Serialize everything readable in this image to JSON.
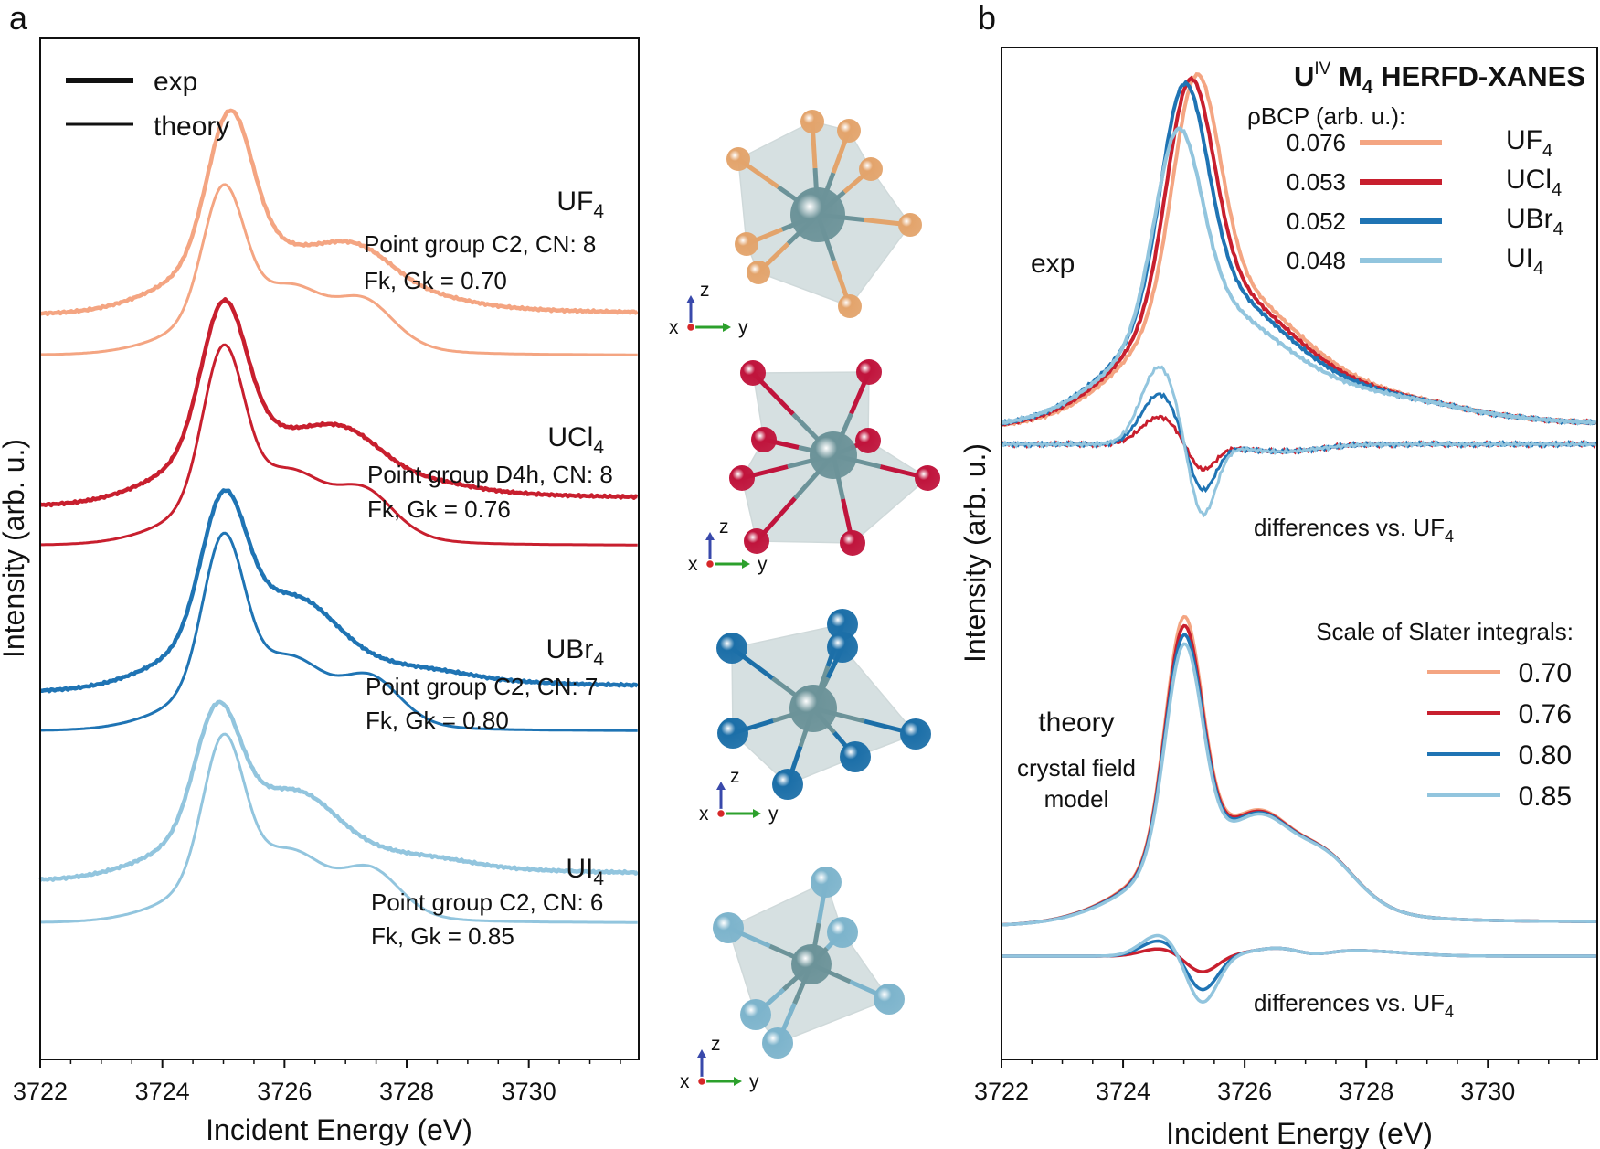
{
  "colors": {
    "UF4": "#f4a582",
    "UCl4": "#c81f2e",
    "UBr4": "#1f74b4",
    "UI4": "#92c5de",
    "axis": "#111111",
    "polyhedron": "#b4c6c8",
    "uranium": "#6c9399"
  },
  "panel_a": {
    "label": "a",
    "xlabel": "Incident Energy (eV)",
    "ylabel": "Intensity (arb. u.)",
    "legend": {
      "exp": "exp",
      "theory": "theory"
    },
    "compounds": [
      {
        "key": "UF4",
        "base": "UF",
        "sub": "4",
        "pg": "Point group C2, CN: 8",
        "fk": "Fk, Gk = 0.70"
      },
      {
        "key": "UCl4",
        "base": "UCl",
        "sub": "4",
        "pg": "Point group D4h, CN: 8",
        "fk": "Fk, Gk = 0.76"
      },
      {
        "key": "UBr4",
        "base": "UBr",
        "sub": "4",
        "pg": "Point group C2, CN: 7",
        "fk": "Fk, Gk = 0.80"
      },
      {
        "key": "UI4",
        "base": "UI",
        "sub": "4",
        "pg": "Point group C2, CN: 6",
        "fk": "Fk, Gk = 0.85"
      }
    ]
  },
  "structures": {
    "axes_labels": {
      "x": "x",
      "y": "y",
      "z": "z"
    },
    "icons": [
      "UF4-structure-icon",
      "UCl4-structure-icon",
      "UBr4-structure-icon",
      "UI4-structure-icon"
    ]
  },
  "panel_b": {
    "label": "b",
    "xlabel": "Incident Energy (eV)",
    "ylabel": "Intensity (arb. u.)",
    "title_main": "U",
    "title_sup": "IV",
    "title_m": " M",
    "title_sub": "4",
    "title_rest": " HERFD-XANES",
    "rho_header": "ρBCP (arb. u.):",
    "rho_values": [
      "0.076",
      "0.053",
      "0.052",
      "0.048"
    ],
    "legend_top": [
      {
        "key": "UF4",
        "base": "UF",
        "sub": "4"
      },
      {
        "key": "UCl4",
        "base": "UCl",
        "sub": "4"
      },
      {
        "key": "UBr4",
        "base": "UBr",
        "sub": "4"
      },
      {
        "key": "UI4",
        "base": "UI",
        "sub": "4"
      }
    ],
    "exp_label": "exp",
    "diff_label": "differences vs. UF",
    "diff_sub": "4",
    "theory_label": "theory",
    "crystal_label_1": "crystal field",
    "crystal_label_2": "model",
    "slater_header": "Scale of Slater integrals:",
    "slater_values": [
      "0.70",
      "0.76",
      "0.80",
      "0.85"
    ]
  },
  "chart_data": [
    {
      "type": "line",
      "panel": "a",
      "xlabel": "Incident Energy (eV)",
      "ylabel": "Intensity (arb. u.)",
      "xlim": [
        3722,
        3731.8
      ],
      "xticks": [
        3722,
        3724,
        3726,
        3728,
        3730
      ],
      "legend": [
        "exp",
        "theory"
      ],
      "series": [
        {
          "name": "UF4",
          "fk_gk": 0.7,
          "exp": {
            "peak_x": 3725.1,
            "baseline_pre": 0.0,
            "peak": 1.0,
            "shoulder_x": 3727.2,
            "post": 0.0
          },
          "theory": {
            "peak_x": 3725.0,
            "peak": 1.0,
            "shoulder_x": 3727.3
          }
        },
        {
          "name": "UCl4",
          "fk_gk": 0.76,
          "exp": {
            "peak_x": 3725.0,
            "peak": 1.0,
            "shoulder_x": 3727.0
          },
          "theory": {
            "peak_x": 3725.0,
            "peak": 1.0,
            "shoulder_x": 3727.3
          }
        },
        {
          "name": "UBr4",
          "fk_gk": 0.8,
          "exp": {
            "peak_x": 3725.0,
            "peak": 1.0,
            "shoulder_x": 3726.3
          },
          "theory": {
            "peak_x": 3725.0,
            "peak": 1.0,
            "shoulder_x": 3727.4
          }
        },
        {
          "name": "UI4",
          "fk_gk": 0.85,
          "exp": {
            "peak_x": 3724.9,
            "peak": 1.0,
            "shoulder_x": 3726.3
          },
          "theory": {
            "peak_x": 3725.0,
            "peak": 1.0,
            "shoulder_x": 3727.4
          }
        }
      ]
    },
    {
      "type": "line",
      "panel": "b",
      "title": "UIV M4 HERFD-XANES",
      "xlabel": "Incident Energy (eV)",
      "ylabel": "Intensity (arb. u.)",
      "xlim": [
        3722,
        3731.8
      ],
      "xticks": [
        3722,
        3724,
        3726,
        3728,
        3730
      ],
      "rho_bcp": {
        "UF4": 0.076,
        "UCl4": 0.053,
        "UBr4": 0.052,
        "UI4": 0.048
      },
      "slater_scale": [
        0.7,
        0.76,
        0.8,
        0.85
      ],
      "exp_peak_x": {
        "UF4": 3725.2,
        "UCl4": 3725.1,
        "UBr4": 3725.0,
        "UI4": 3724.9
      },
      "theory_peak_x": 3725.0
    }
  ]
}
